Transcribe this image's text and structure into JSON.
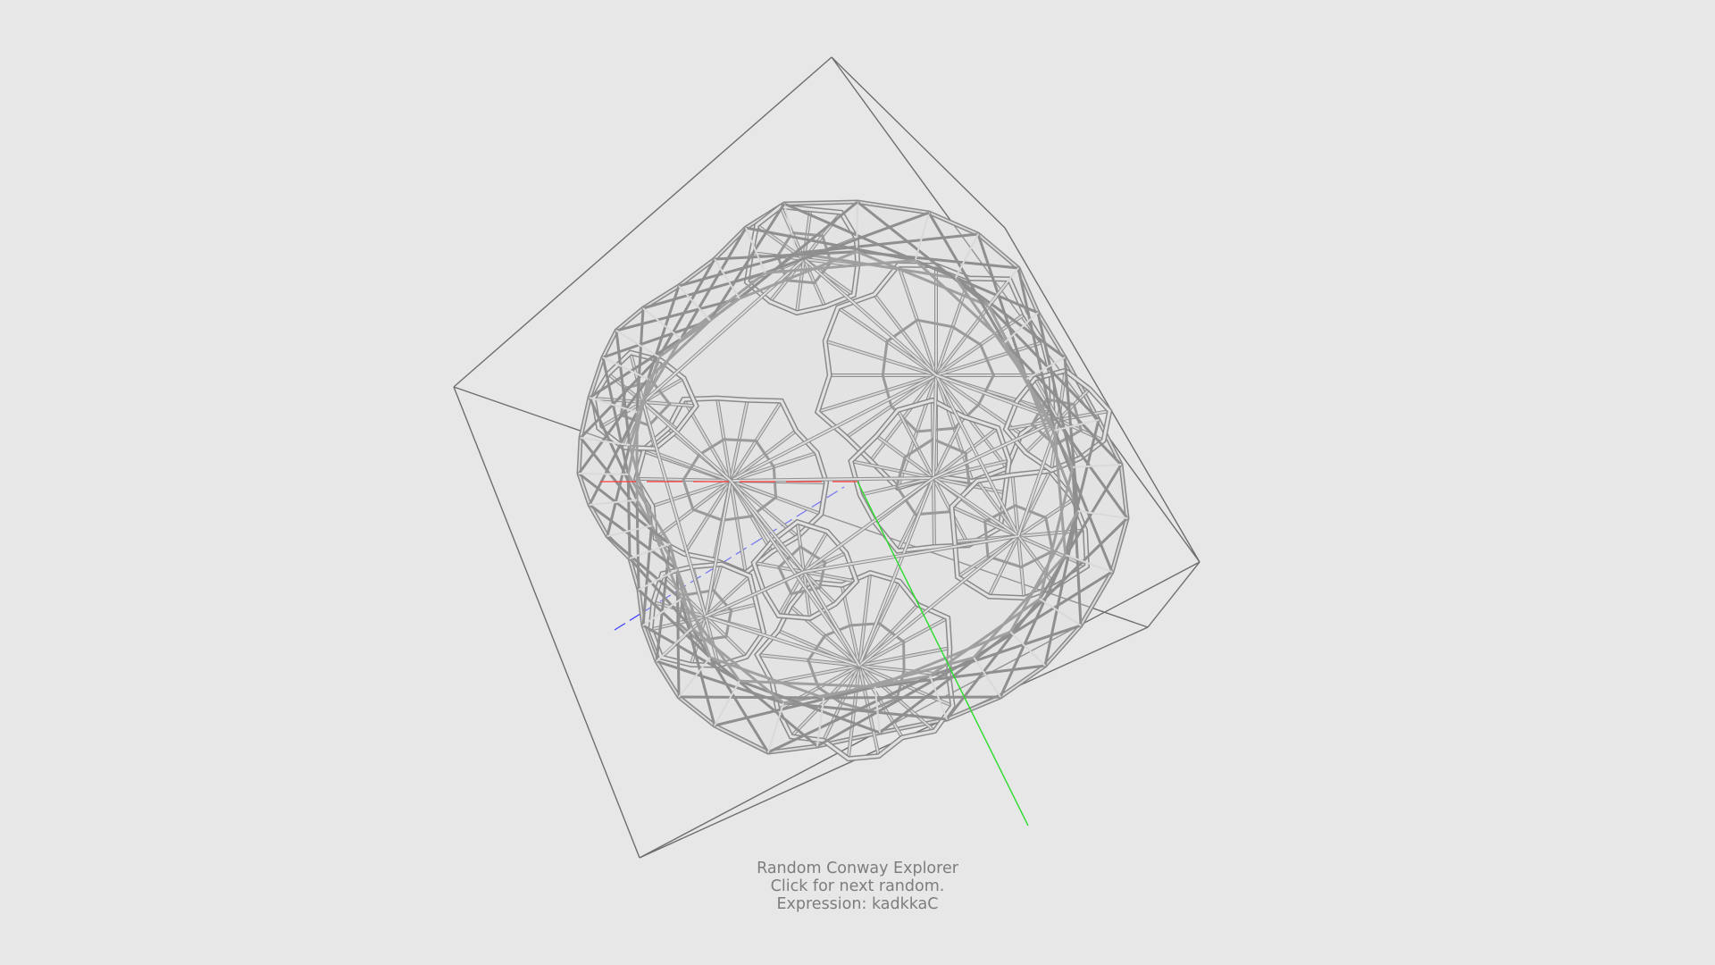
{
  "app": {
    "caption": {
      "title": "Random Conway Explorer",
      "instruction": "Click for next random.",
      "expression_label": "Expression:",
      "expression_value": "kadkkaC"
    }
  },
  "colors": {
    "background": "#e7e7e7",
    "bounding_box": "#6e6e6e",
    "wireframe_strut": "#c9c9c9",
    "wireframe_edge": "#8a8a8a",
    "x_axis": "#ff3b3b",
    "y_axis": "#2bdc2b",
    "z_axis": "#3b3bff",
    "caption_text": "#7d7d7d"
  },
  "scene": {
    "object": "polyhedron-wireframe",
    "axes": [
      "x-axis",
      "y-axis",
      "z-axis"
    ]
  }
}
